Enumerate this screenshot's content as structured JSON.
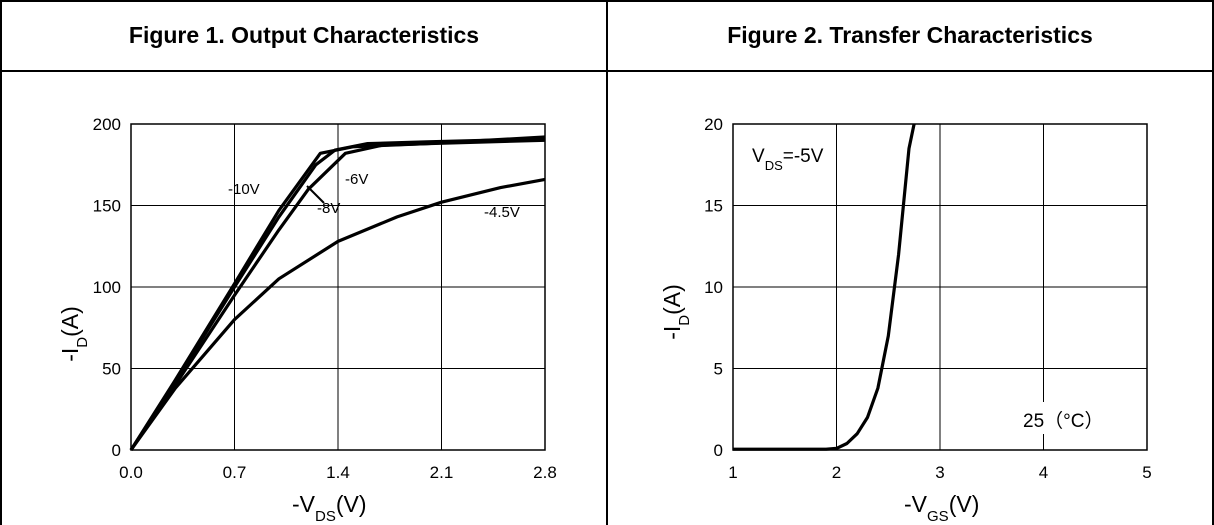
{
  "chart_data": [
    {
      "type": "line",
      "title": "Figure 1. Output Characteristics",
      "xlabel": "-V_DS(V)",
      "ylabel": "-I_D(A)",
      "xlim": [
        0,
        2.8
      ],
      "ylim": [
        0,
        200
      ],
      "xticks": [
        "0.0",
        "0.7",
        "1.4",
        "2.1",
        "2.8"
      ],
      "yticks": [
        "0",
        "50",
        "100",
        "150",
        "200"
      ],
      "grid": true,
      "series": [
        {
          "name": "-10V",
          "x": [
            0,
            0.3,
            0.7,
            1.0,
            1.28,
            1.5,
            2.0,
            2.8
          ],
          "y": [
            0,
            43,
            102,
            147,
            182,
            186,
            188,
            192
          ]
        },
        {
          "name": "-8V",
          "x": [
            0,
            0.3,
            0.7,
            1.0,
            1.25,
            1.38,
            1.6,
            2.0,
            2.8
          ],
          "y": [
            0,
            42,
            100,
            143,
            175,
            184,
            188,
            189,
            191
          ]
        },
        {
          "name": "-6V",
          "x": [
            0,
            0.3,
            0.7,
            1.0,
            1.2,
            1.45,
            1.7,
            2.0,
            2.8
          ],
          "y": [
            0,
            40,
            95,
            135,
            160,
            182,
            187,
            188,
            190
          ]
        },
        {
          "name": "-4.5V",
          "x": [
            0,
            0.3,
            0.7,
            1.0,
            1.4,
            1.8,
            2.1,
            2.5,
            2.8
          ],
          "y": [
            0,
            38,
            80,
            105,
            128,
            143,
            152,
            161,
            166
          ]
        }
      ],
      "annotations": [
        "-10V",
        "-8V",
        "-6V",
        "-4.5V"
      ]
    },
    {
      "type": "line",
      "title": "Figure 2. Transfer Characteristics",
      "xlabel": "-V_GS(V)",
      "ylabel": "-I_D(A)",
      "xlim": [
        1,
        5
      ],
      "ylim": [
        0,
        20
      ],
      "xticks": [
        "1",
        "2",
        "3",
        "4",
        "5"
      ],
      "yticks": [
        "0",
        "5",
        "10",
        "15",
        "20"
      ],
      "grid": true,
      "series": [
        {
          "name": "25 (°C)",
          "x": [
            1,
            1.5,
            1.9,
            2.0,
            2.1,
            2.2,
            2.3,
            2.4,
            2.5,
            2.6,
            2.7,
            2.75
          ],
          "y": [
            0.05,
            0.05,
            0.05,
            0.1,
            0.4,
            1.0,
            2.0,
            3.8,
            7.0,
            12.0,
            18.5,
            20
          ]
        }
      ],
      "annotations": [
        "V_DS=-5V",
        "25（°C）"
      ]
    }
  ]
}
